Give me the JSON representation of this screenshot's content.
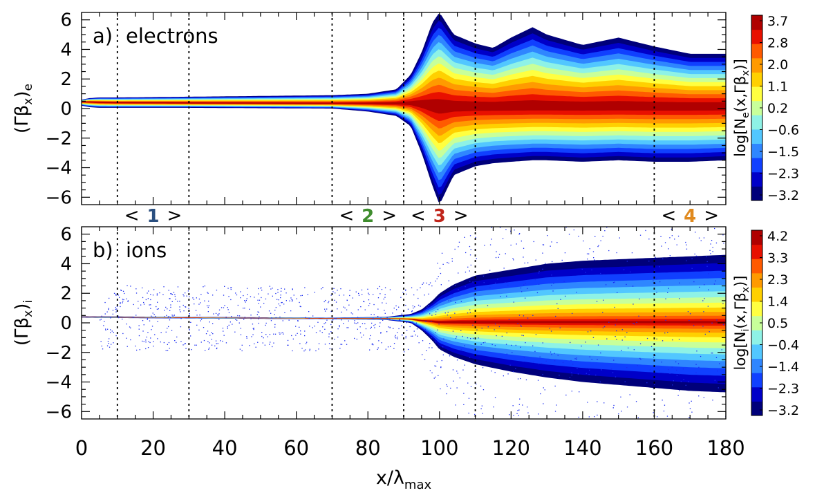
{
  "chart_data": {
    "type": "heatmap",
    "shared_x": {
      "label": "x/λ",
      "label_subscript": "max",
      "range": [
        0,
        180
      ],
      "ticks": [
        0,
        20,
        40,
        60,
        80,
        100,
        120,
        140,
        160,
        180
      ],
      "tick_labels": [
        "0",
        "20",
        "40",
        "60",
        "80",
        "100",
        "120",
        "140",
        "160",
        "180"
      ],
      "minor_step": 5
    },
    "region_lines_x": [
      10,
      30,
      70,
      90,
      110,
      160
    ],
    "regions": [
      {
        "label": "1",
        "open": "<",
        "close": ">",
        "x_from": 10,
        "x_to": 30,
        "color": "#2a4f80"
      },
      {
        "label": "2",
        "open": "<",
        "close": ">",
        "x_from": 70,
        "x_to": 90,
        "color": "#3f8d2e"
      },
      {
        "label": "3",
        "open": "<",
        "close": ">",
        "x_from": 90,
        "x_to": 110,
        "color": "#c0251b"
      },
      {
        "label": "4",
        "open": "<",
        "close": ">",
        "x_from": 160,
        "x_to": 180,
        "color": "#e08a1f"
      }
    ],
    "panels": [
      {
        "id": "electrons",
        "tag": "a)",
        "title": "electrons",
        "ylabel": "(Γβ",
        "ylabel_sub_x": "x",
        "ylabel_close": ")",
        "ylabel_species": "e",
        "ylim": [
          -6.5,
          6.5
        ],
        "yticks": [
          6,
          4,
          2,
          0,
          -2,
          -4,
          -6
        ],
        "ytick_labels": [
          "6",
          "4",
          "2",
          "0",
          "−2",
          "−4",
          "−6"
        ],
        "colorbar": {
          "label_pre": "log[N",
          "label_species": "e",
          "label_mid": "(x,Γβ",
          "label_sub_x": "x",
          "label_post": ")]",
          "tick_labels": [
            "3.7",
            "2.8",
            "2.0",
            "1.1",
            "0.2",
            "−0.6",
            "−1.5",
            "−2.3",
            "−3.2"
          ],
          "range": [
            -3.2,
            3.7
          ]
        },
        "envelope": {
          "x": [
            0,
            2,
            5,
            10,
            30,
            70,
            80,
            88,
            92,
            95,
            98,
            100,
            104,
            110,
            115,
            120,
            126,
            130,
            140,
            150,
            160,
            170,
            180
          ],
          "center": [
            0.45,
            0.45,
            0.42,
            0.4,
            0.38,
            0.35,
            0.35,
            0.35,
            0.35,
            0.3,
            0.2,
            0.15,
            0.15,
            0.15,
            0.15,
            0.15,
            0.15,
            0.15,
            0.15,
            0.15,
            0.15,
            0.15,
            0.15
          ],
          "upper": [
            0.6,
            0.7,
            0.75,
            0.75,
            0.8,
            0.9,
            1.0,
            1.3,
            2.3,
            3.8,
            5.8,
            6.5,
            5.0,
            4.4,
            4.1,
            4.8,
            5.5,
            5.0,
            4.3,
            4.8,
            4.2,
            3.7,
            3.7
          ],
          "lower": [
            0.2,
            0.1,
            0.05,
            0.05,
            0.05,
            0.0,
            -0.2,
            -0.5,
            -1.2,
            -3.0,
            -5.2,
            -6.5,
            -4.5,
            -3.9,
            -3.7,
            -3.6,
            -3.5,
            -3.5,
            -3.6,
            -3.5,
            -3.6,
            -3.6,
            -3.5
          ],
          "core": [
            0.1,
            0.12,
            0.14,
            0.15,
            0.15,
            0.15,
            0.15,
            0.2,
            0.25,
            0.45,
            0.85,
            1.0,
            1.05,
            1.05,
            1.05,
            1.1,
            1.1,
            1.1,
            1.1,
            1.1,
            1.1,
            1.1,
            1.1
          ]
        }
      },
      {
        "id": "ions",
        "tag": "b)",
        "title": "ions",
        "ylabel": "(Γβ",
        "ylabel_sub_x": "x",
        "ylabel_close": ")",
        "ylabel_species": "i",
        "ylim": [
          -6.5,
          6.5
        ],
        "yticks": [
          6,
          4,
          2,
          0,
          -2,
          -4,
          -6
        ],
        "ytick_labels": [
          "6",
          "4",
          "2",
          "0",
          "−2",
          "−4",
          "−6"
        ],
        "colorbar": {
          "label_pre": "log[N",
          "label_species": "i",
          "label_mid": "(x,Γβ",
          "label_sub_x": "x",
          "label_post": ")]",
          "tick_labels": [
            "4.2",
            "3.3",
            "2.3",
            "1.4",
            "0.5",
            "−0.4",
            "−1.4",
            "−2.3",
            "−3.2"
          ],
          "range": [
            -3.2,
            4.2
          ]
        },
        "envelope": {
          "x": [
            0,
            10,
            30,
            70,
            85,
            92,
            95,
            98,
            100,
            104,
            110,
            120,
            130,
            140,
            150,
            160,
            170,
            180
          ],
          "center": [
            0.4,
            0.38,
            0.35,
            0.3,
            0.3,
            0.25,
            0.15,
            0.1,
            0.05,
            0.05,
            0.05,
            0.05,
            0.05,
            0.05,
            0.05,
            0.05,
            0.05,
            0.05
          ],
          "upper": [
            0.45,
            0.43,
            0.4,
            0.35,
            0.4,
            0.6,
            0.9,
            1.5,
            2.0,
            2.6,
            3.2,
            3.6,
            4.0,
            4.2,
            4.3,
            4.4,
            4.5,
            4.6
          ],
          "lower": [
            0.35,
            0.33,
            0.3,
            0.25,
            0.2,
            0.0,
            -0.5,
            -1.2,
            -1.8,
            -2.3,
            -2.8,
            -3.3,
            -3.7,
            -4.0,
            -4.2,
            -4.4,
            -4.6,
            -4.7
          ],
          "core": [
            0.03,
            0.03,
            0.03,
            0.03,
            0.05,
            0.1,
            0.15,
            0.2,
            0.25,
            0.3,
            0.3,
            0.3,
            0.3,
            0.3,
            0.3,
            0.3,
            0.3,
            0.3
          ]
        }
      }
    ],
    "colormap": [
      "#00007a",
      "#0000c8",
      "#1040ff",
      "#2f86ff",
      "#52c7ff",
      "#8ef2e6",
      "#c8ff9a",
      "#ffff40",
      "#ffd000",
      "#ff9a00",
      "#ff5a00",
      "#e81000",
      "#b00000"
    ]
  }
}
